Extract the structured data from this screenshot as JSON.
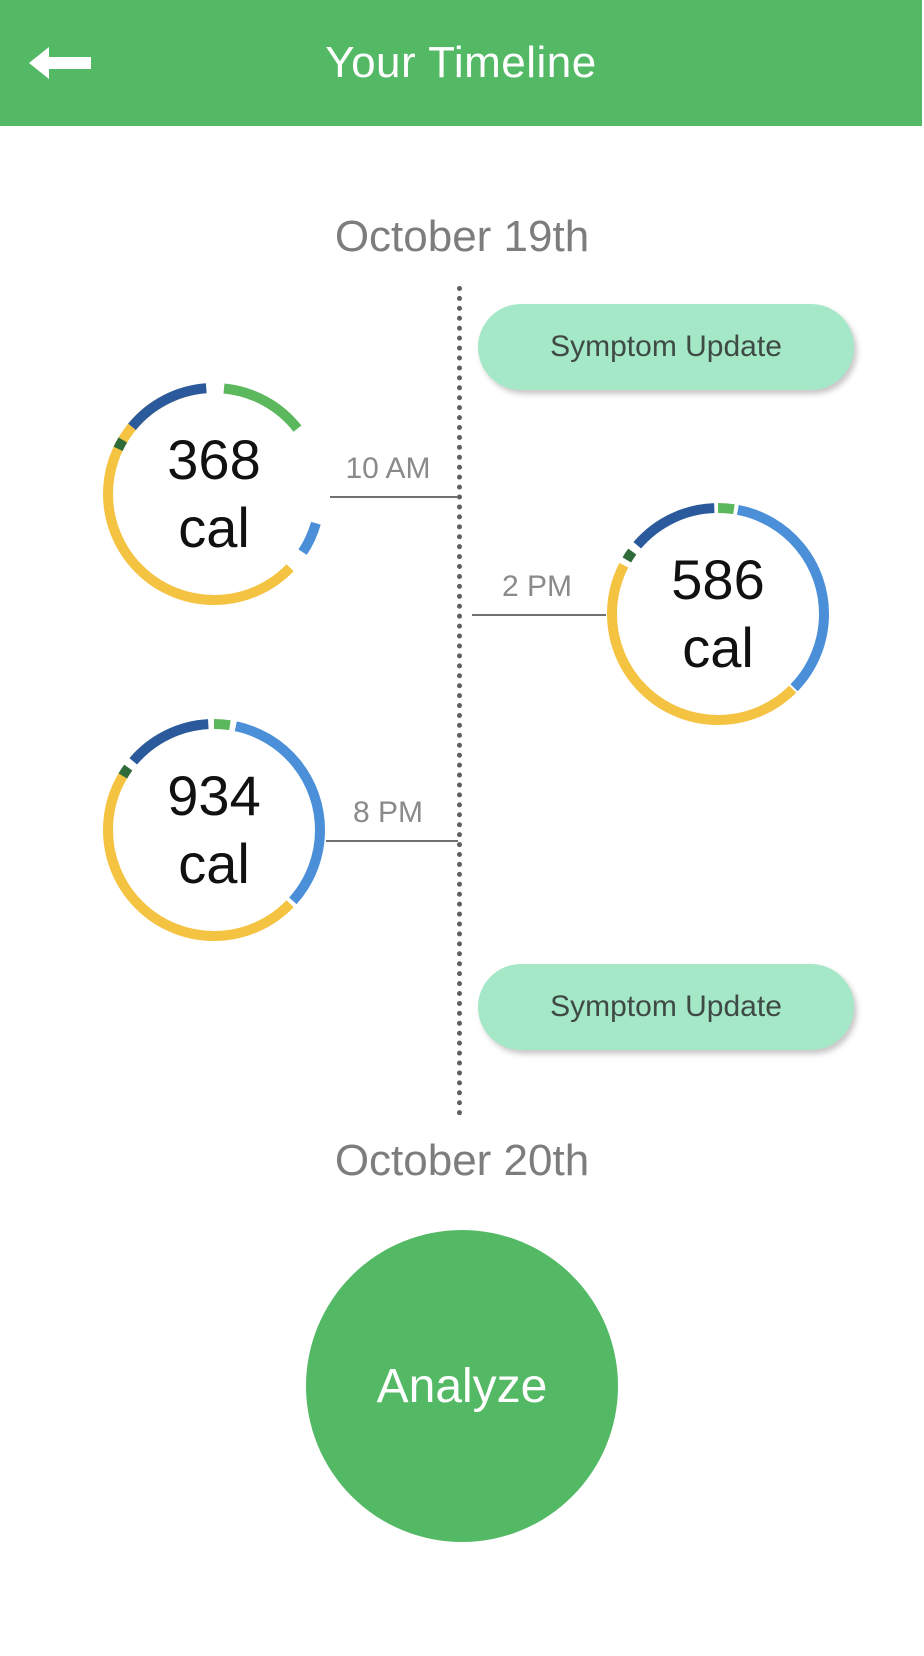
{
  "header": {
    "title": "Your Timeline",
    "back_icon": "arrow-left-icon"
  },
  "timeline": {
    "start_date": "October 19th",
    "end_date": "October 20th",
    "entries": [
      {
        "type": "symptom",
        "label": "Symptom Update"
      },
      {
        "type": "meal",
        "time": "10 AM",
        "calories": "368",
        "unit": "cal"
      },
      {
        "type": "meal",
        "time": "2 PM",
        "calories": "586",
        "unit": "cal"
      },
      {
        "type": "meal",
        "time": "8 PM",
        "calories": "934",
        "unit": "cal"
      },
      {
        "type": "symptom",
        "label": "Symptom Update"
      }
    ]
  },
  "actions": {
    "analyze_label": "Analyze"
  },
  "colors": {
    "brand_green": "#53b965",
    "symptom_pill": "#a4e8c7",
    "ring_yellow": "#f5c342",
    "ring_light_blue": "#4a8fd8",
    "ring_dark_blue": "#2a5a9c",
    "ring_green": "#5cb85c",
    "ring_dark_green": "#2f6b3a"
  }
}
